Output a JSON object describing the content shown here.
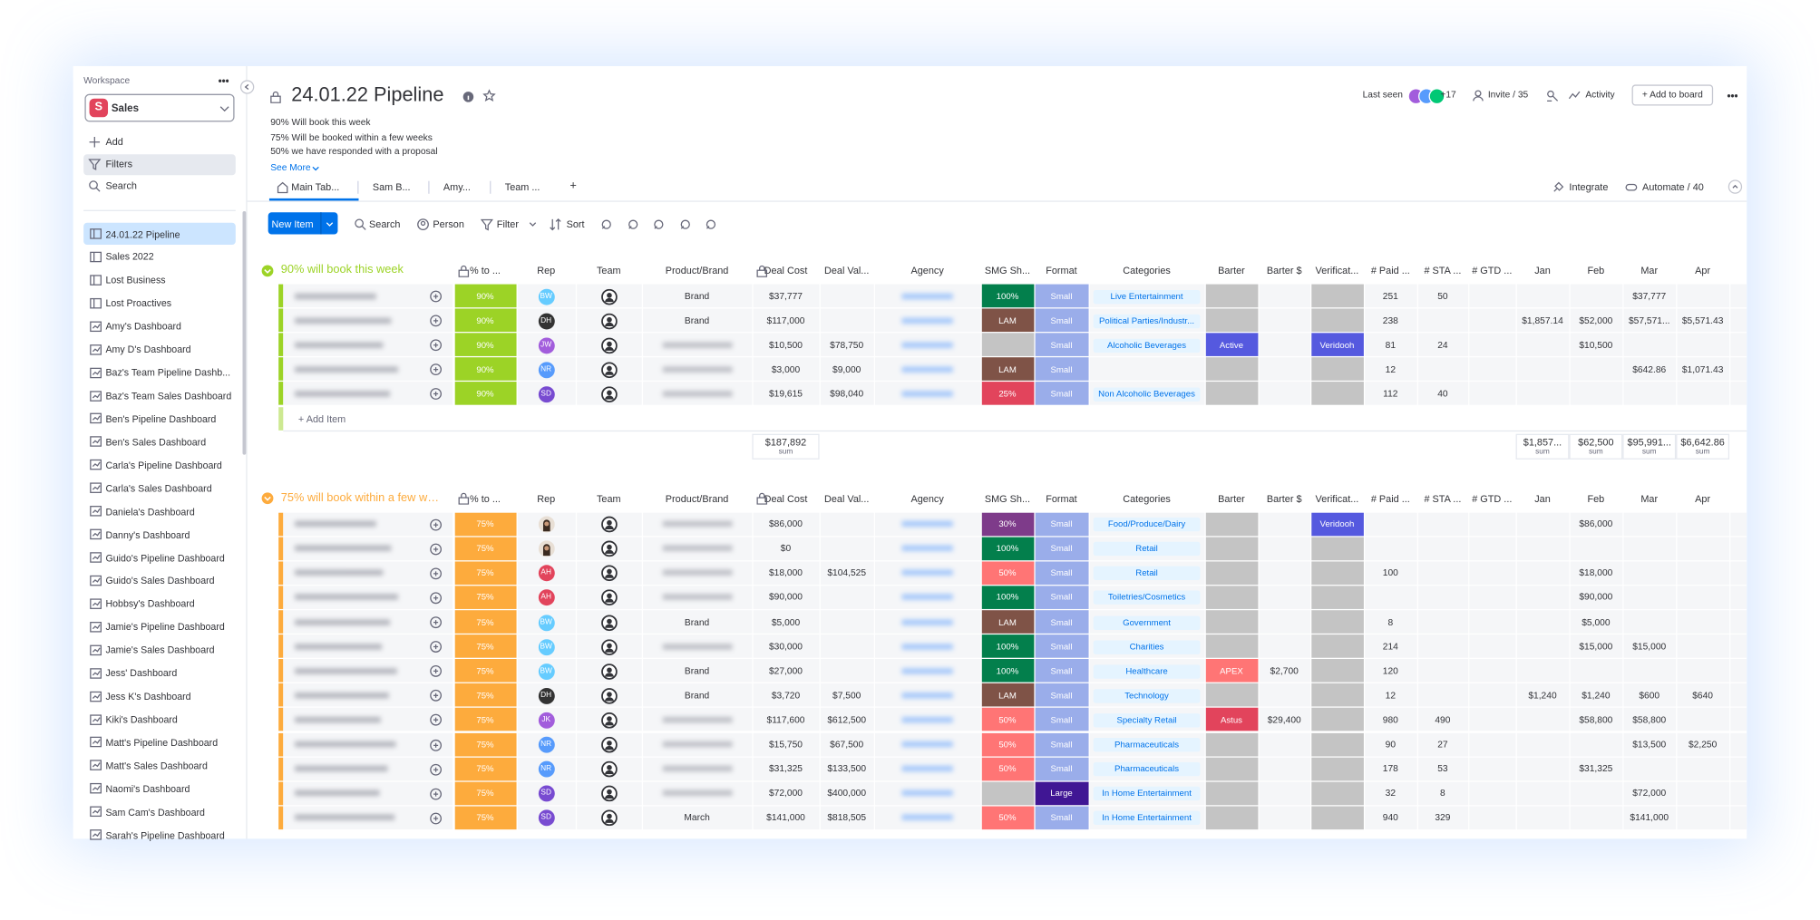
{
  "sidebar": {
    "workspace_label": "Workspace",
    "menu": "•••",
    "workspace_icon": "S",
    "workspace": "Sales",
    "actions": [
      "Add",
      "Filters",
      "Search"
    ],
    "boards": [
      "24.01.22 Pipeline",
      "Sales 2022",
      "Lost Business",
      "Lost Proactives",
      "Amy's Dashboard",
      "Amy D's Dashboard",
      "Baz's Team Pipeline Dashb...",
      "Baz's Team Sales Dashboard",
      "Ben's Pipeline Dashboard",
      "Ben's Sales Dashboard",
      "Carla's Pipeline Dashboard",
      "Carla's Sales Dashboard",
      "Daniela's Dashboard",
      "Danny's Dashboard",
      "Guido's Pipeline Dashboard",
      "Guido's Sales Dashboard",
      "Hobbsy's Dashboard",
      "Jamie's Pipeline Dashboard",
      "Jamie's Sales Dashboard",
      "Jess' Dashboard",
      "Jess K's Dashboard",
      "Kiki's Dashboard",
      "Matt's Pipeline Dashboard",
      "Matt's Sales Dashboard",
      "Naomi's Dashboard",
      "Sam Cam's Dashboard",
      "Sarah's Pipeline Dashboard"
    ]
  },
  "header": {
    "title": "24.01.22 Pipeline",
    "description": [
      "90% Will book this week",
      "75% Will be booked within a few weeks",
      "50% we have responded with a proposal"
    ],
    "see_more": "See More",
    "last_seen": "Last seen",
    "more_viewers": "+17",
    "invite": "Invite / 35",
    "activity": "Activity",
    "add_to_board": "+ Add to board",
    "more": "•••"
  },
  "tabs": {
    "items": [
      "Main Tab...",
      "Sam B...",
      "Amy...",
      "Team ...",
      "+"
    ],
    "integrate": "Integrate",
    "automate": "Automate / 40"
  },
  "toolbar": {
    "new_item": "New Item",
    "search": "Search",
    "person": "Person",
    "filter": "Filter",
    "sort": "Sort"
  },
  "columns": [
    "% to ...",
    "Rep",
    "Team",
    "Product/Brand",
    "Deal Cost",
    "Deal Val...",
    "Agency",
    "SMG Sh...",
    "Format",
    "Categories",
    "Barter",
    "Barter $",
    "Verificat...",
    "# Paid ...",
    "# STA ...",
    "# GTD ...",
    "Jan",
    "Feb",
    "Mar",
    "Apr"
  ],
  "groups": [
    {
      "title": "90% will book this week",
      "color": "#9cd326",
      "add_item": "+ Add Item",
      "summary_label": "sum",
      "summary": {
        "deal_cost": "$187,892",
        "jan": "$1,857...",
        "feb": "$62,500",
        "mar": "$95,991...",
        "apr": "$6,642.86"
      },
      "rows": [
        {
          "pct": "90%",
          "rep": {
            "text": "BW",
            "color": "#66ccff"
          },
          "product": "Brand",
          "deal_cost": "$37,777",
          "smg": {
            "text": "100%",
            "color": "#037f4c"
          },
          "format": {
            "text": "Small",
            "color": "#9aadea"
          },
          "category": "Live Entertainment",
          "paid": "251",
          "sta": "50",
          "mar": "$37,777"
        },
        {
          "pct": "90%",
          "rep": {
            "text": "DH",
            "color": "#333333"
          },
          "product": "Brand",
          "deal_cost": "$117,000",
          "smg": {
            "text": "LAM",
            "color": "#7f5347"
          },
          "format": {
            "text": "Small",
            "color": "#9aadea"
          },
          "category": "Political Parties/Industr...",
          "paid": "238",
          "jan": "$1,857.14",
          "feb": "$52,000",
          "mar": "$57,571...",
          "apr": "$5,571.43"
        },
        {
          "pct": "90%",
          "rep": {
            "text": "JW",
            "color": "#a25ddc"
          },
          "deal_cost": "$10,500",
          "deal_value": "$78,750",
          "format": {
            "text": "Small",
            "color": "#9aadea"
          },
          "category": "Alcoholic Beverages",
          "barter": {
            "text": "Active",
            "color": "#5559df"
          },
          "verification": {
            "text": "Veridooh",
            "color": "#5559df"
          },
          "paid": "81",
          "sta": "24",
          "feb": "$10,500"
        },
        {
          "pct": "90%",
          "rep": {
            "text": "NR",
            "color": "#579bfc"
          },
          "deal_cost": "$3,000",
          "deal_value": "$9,000",
          "smg": {
            "text": "LAM",
            "color": "#7f5347"
          },
          "format": {
            "text": "Small",
            "color": "#9aadea"
          },
          "paid": "12",
          "mar": "$642.86",
          "apr": "$1,071.43"
        },
        {
          "pct": "90%",
          "rep": {
            "text": "SD",
            "color": "#784bd1"
          },
          "deal_cost": "$19,615",
          "deal_value": "$98,040",
          "smg": {
            "text": "25%",
            "color": "#e2445c"
          },
          "format": {
            "text": "Small",
            "color": "#9aadea"
          },
          "category": "Non Alcoholic Beverages",
          "paid": "112",
          "sta": "40"
        }
      ]
    },
    {
      "title": "75% will book within a few we...",
      "color": "#fdab3d",
      "rows": [
        {
          "pct": "75%",
          "deal_cost": "$86,000",
          "smg": {
            "text": "30%",
            "color": "#7e3b8a"
          },
          "format": {
            "text": "Small",
            "color": "#9aadea"
          },
          "category": "Food/Produce/Dairy",
          "verification": {
            "text": "Veridooh",
            "color": "#5559df"
          },
          "feb": "$86,000"
        },
        {
          "pct": "75%",
          "deal_cost": "$0",
          "smg": {
            "text": "100%",
            "color": "#037f4c"
          },
          "format": {
            "text": "Small",
            "color": "#9aadea"
          },
          "category": "Retail"
        },
        {
          "pct": "75%",
          "rep": {
            "text": "AH",
            "color": "#e2445c"
          },
          "deal_cost": "$18,000",
          "deal_value": "$104,525",
          "smg": {
            "text": "50%",
            "color": "#ff7575"
          },
          "format": {
            "text": "Small",
            "color": "#9aadea"
          },
          "category": "Retail",
          "paid": "100",
          "feb": "$18,000"
        },
        {
          "pct": "75%",
          "rep": {
            "text": "AH",
            "color": "#e2445c"
          },
          "deal_cost": "$90,000",
          "smg": {
            "text": "100%",
            "color": "#037f4c"
          },
          "format": {
            "text": "Small",
            "color": "#9aadea"
          },
          "category": "Toiletries/Cosmetics",
          "feb": "$90,000"
        },
        {
          "pct": "75%",
          "rep": {
            "text": "BW",
            "color": "#66ccff"
          },
          "product": "Brand",
          "deal_cost": "$5,000",
          "smg": {
            "text": "LAM",
            "color": "#7f5347"
          },
          "format": {
            "text": "Small",
            "color": "#9aadea"
          },
          "category": "Government",
          "paid": "8",
          "feb": "$5,000"
        },
        {
          "pct": "75%",
          "rep": {
            "text": "BW",
            "color": "#66ccff"
          },
          "deal_cost": "$30,000",
          "smg": {
            "text": "100%",
            "color": "#037f4c"
          },
          "format": {
            "text": "Small",
            "color": "#9aadea"
          },
          "category": "Charities",
          "paid": "214",
          "feb": "$15,000",
          "mar": "$15,000"
        },
        {
          "pct": "75%",
          "rep": {
            "text": "BW",
            "color": "#66ccff"
          },
          "product": "Brand",
          "deal_cost": "$27,000",
          "smg": {
            "text": "100%",
            "color": "#037f4c"
          },
          "format": {
            "text": "Small",
            "color": "#9aadea"
          },
          "category": "Healthcare",
          "barter": {
            "text": "APEX",
            "color": "#ff7575"
          },
          "barter_amount": "$2,700",
          "paid": "120"
        },
        {
          "pct": "75%",
          "rep": {
            "text": "DH",
            "color": "#333333"
          },
          "product": "Brand",
          "deal_cost": "$3,720",
          "deal_value": "$7,500",
          "smg": {
            "text": "LAM",
            "color": "#7f5347"
          },
          "format": {
            "text": "Small",
            "color": "#9aadea"
          },
          "category": "Technology",
          "paid": "12",
          "jan": "$1,240",
          "feb": "$1,240",
          "mar": "$600",
          "apr": "$640"
        },
        {
          "pct": "75%",
          "rep": {
            "text": "JK",
            "color": "#a25ddc"
          },
          "deal_cost": "$117,600",
          "deal_value": "$612,500",
          "smg": {
            "text": "50%",
            "color": "#ff7575"
          },
          "format": {
            "text": "Small",
            "color": "#9aadea"
          },
          "category": "Specialty Retail",
          "barter": {
            "text": "Astus",
            "color": "#e2445c"
          },
          "barter_amount": "$29,400",
          "paid": "980",
          "sta": "490",
          "feb": "$58,800",
          "mar": "$58,800"
        },
        {
          "pct": "75%",
          "rep": {
            "text": "NR",
            "color": "#579bfc"
          },
          "deal_cost": "$15,750",
          "deal_value": "$67,500",
          "smg": {
            "text": "50%",
            "color": "#ff7575"
          },
          "format": {
            "text": "Small",
            "color": "#9aadea"
          },
          "category": "Pharmaceuticals",
          "paid": "90",
          "sta": "27",
          "mar": "$13,500",
          "apr": "$2,250"
        },
        {
          "pct": "75%",
          "rep": {
            "text": "NR",
            "color": "#579bfc"
          },
          "deal_cost": "$31,325",
          "deal_value": "$133,500",
          "smg": {
            "text": "50%",
            "color": "#ff7575"
          },
          "format": {
            "text": "Small",
            "color": "#9aadea"
          },
          "category": "Pharmaceuticals",
          "paid": "178",
          "sta": "53",
          "feb": "$31,325"
        },
        {
          "pct": "75%",
          "rep": {
            "text": "SD",
            "color": "#784bd1"
          },
          "deal_cost": "$72,000",
          "deal_value": "$400,000",
          "format": {
            "text": "Large",
            "color": "#401694"
          },
          "category": "In Home Entertainment",
          "paid": "32",
          "sta": "8",
          "mar": "$72,000"
        },
        {
          "pct": "75%",
          "rep": {
            "text": "SD",
            "color": "#784bd1"
          },
          "product": "March",
          "deal_cost": "$141,000",
          "deal_value": "$818,505",
          "smg": {
            "text": "50%",
            "color": "#ff7575"
          },
          "format": {
            "text": "Small",
            "color": "#9aadea"
          },
          "category": "In Home Entertainment",
          "paid": "940",
          "sta": "329",
          "mar": "$141,000"
        }
      ]
    }
  ]
}
